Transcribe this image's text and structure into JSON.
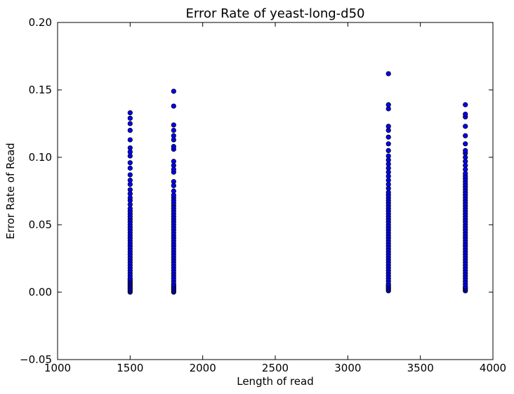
{
  "chart_data": {
    "type": "scatter",
    "title": "Error Rate of yeast-long-d50",
    "xlabel": "Length of read",
    "ylabel": "Error Rate of Read",
    "xlim": [
      1000,
      4000
    ],
    "ylim": [
      -0.05,
      0.2
    ],
    "xticks": [
      1000,
      1500,
      2000,
      2500,
      3000,
      3500,
      4000
    ],
    "xtick_labels": [
      "1000",
      "1500",
      "2000",
      "2500",
      "3000",
      "3500",
      "4000"
    ],
    "yticks": [
      -0.05,
      0.0,
      0.05,
      0.1,
      0.15,
      0.2
    ],
    "ytick_labels": [
      "−0.05",
      "0.00",
      "0.05",
      "0.10",
      "0.15",
      "0.20"
    ],
    "grid": false,
    "marker_color": "#0000ff",
    "marker_edge_color": "#000000",
    "groups": [
      {
        "x": 1500,
        "y": [
          0.0,
          0.001,
          0.002,
          0.003,
          0.004,
          0.005,
          0.006,
          0.007,
          0.008,
          0.009,
          0.01,
          0.012,
          0.014,
          0.016,
          0.018,
          0.02,
          0.022,
          0.024,
          0.026,
          0.028,
          0.03,
          0.032,
          0.034,
          0.036,
          0.038,
          0.04,
          0.042,
          0.044,
          0.046,
          0.048,
          0.05,
          0.052,
          0.054,
          0.056,
          0.058,
          0.06,
          0.062,
          0.065,
          0.068,
          0.07,
          0.073,
          0.076,
          0.08,
          0.083,
          0.087,
          0.092,
          0.096,
          0.101,
          0.104,
          0.107,
          0.113,
          0.12,
          0.125,
          0.129,
          0.133
        ]
      },
      {
        "x": 1800,
        "y": [
          0.0,
          0.001,
          0.002,
          0.003,
          0.004,
          0.005,
          0.006,
          0.008,
          0.01,
          0.012,
          0.014,
          0.016,
          0.018,
          0.02,
          0.022,
          0.024,
          0.026,
          0.028,
          0.03,
          0.032,
          0.034,
          0.036,
          0.038,
          0.04,
          0.042,
          0.044,
          0.046,
          0.048,
          0.05,
          0.052,
          0.054,
          0.056,
          0.058,
          0.06,
          0.062,
          0.064,
          0.066,
          0.068,
          0.07,
          0.072,
          0.075,
          0.079,
          0.082,
          0.089,
          0.091,
          0.094,
          0.097,
          0.106,
          0.108,
          0.113,
          0.116,
          0.12,
          0.124,
          0.138,
          0.149
        ]
      },
      {
        "x": 3280,
        "y": [
          0.001,
          0.002,
          0.003,
          0.004,
          0.005,
          0.006,
          0.008,
          0.01,
          0.012,
          0.014,
          0.016,
          0.018,
          0.02,
          0.022,
          0.024,
          0.026,
          0.028,
          0.03,
          0.032,
          0.034,
          0.036,
          0.038,
          0.04,
          0.042,
          0.044,
          0.046,
          0.048,
          0.05,
          0.052,
          0.054,
          0.056,
          0.058,
          0.06,
          0.062,
          0.064,
          0.066,
          0.068,
          0.07,
          0.072,
          0.074,
          0.077,
          0.08,
          0.083,
          0.086,
          0.089,
          0.092,
          0.095,
          0.098,
          0.101,
          0.105,
          0.11,
          0.115,
          0.12,
          0.123,
          0.136,
          0.139,
          0.162
        ]
      },
      {
        "x": 3810,
        "y": [
          0.001,
          0.002,
          0.003,
          0.004,
          0.006,
          0.008,
          0.01,
          0.012,
          0.014,
          0.016,
          0.018,
          0.02,
          0.022,
          0.024,
          0.026,
          0.028,
          0.03,
          0.032,
          0.034,
          0.036,
          0.038,
          0.04,
          0.042,
          0.044,
          0.046,
          0.048,
          0.05,
          0.052,
          0.054,
          0.056,
          0.058,
          0.06,
          0.062,
          0.064,
          0.066,
          0.068,
          0.07,
          0.072,
          0.074,
          0.076,
          0.078,
          0.08,
          0.082,
          0.084,
          0.086,
          0.088,
          0.091,
          0.094,
          0.097,
          0.1,
          0.103,
          0.105,
          0.11,
          0.116,
          0.123,
          0.13,
          0.132,
          0.139
        ]
      }
    ]
  }
}
